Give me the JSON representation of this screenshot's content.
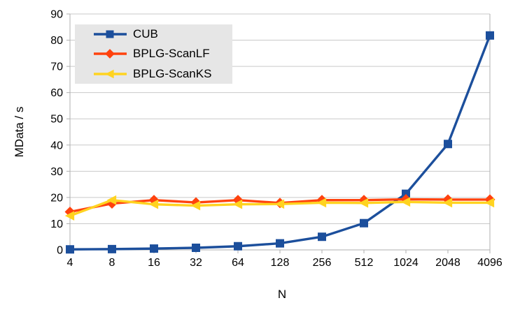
{
  "chart_data": {
    "type": "line",
    "title": "",
    "xlabel": "N",
    "ylabel": "MData / s",
    "categories": [
      "4",
      "8",
      "16",
      "32",
      "64",
      "128",
      "256",
      "512",
      "1024",
      "2048",
      "4096"
    ],
    "ylim": [
      0,
      90
    ],
    "yticks": [
      0,
      10,
      20,
      30,
      40,
      50,
      60,
      70,
      80,
      90
    ],
    "grid": "horizontal-only",
    "legend_position": "top-left-inside",
    "series": [
      {
        "name": "CUB",
        "color": "#1C4F9C",
        "marker": "square",
        "values": [
          0.2,
          0.3,
          0.5,
          0.8,
          1.4,
          2.5,
          5.0,
          10.2,
          21.4,
          40.4,
          81.8
        ]
      },
      {
        "name": "BPLG-ScanLF",
        "color": "#FF420E",
        "marker": "diamond",
        "values": [
          14.5,
          17.7,
          19.0,
          18.1,
          19.0,
          17.9,
          19.0,
          19.0,
          19.3,
          19.2,
          19.2
        ]
      },
      {
        "name": "BPLG-ScanKS",
        "color": "#FFD320",
        "marker": "triangle-left",
        "values": [
          13.0,
          19.0,
          17.4,
          16.9,
          17.4,
          17.5,
          18.0,
          17.9,
          18.3,
          18.0,
          18.0
        ]
      }
    ],
    "colors": {
      "gridline": "#C9C9C9",
      "axis": "#AFAFAF",
      "legend_bg": "#E6E6E6",
      "text": "#000000",
      "background": "#FFFFFF"
    }
  }
}
